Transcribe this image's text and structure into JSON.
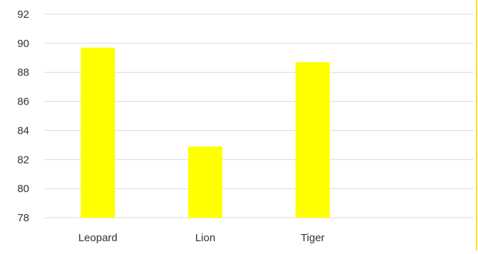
{
  "chart_data": {
    "type": "bar",
    "categories": [
      "Leopard",
      "Lion",
      "Tiger",
      ""
    ],
    "values": [
      89.7,
      82.9,
      88.7,
      null
    ],
    "ylim": [
      78,
      92
    ],
    "yticks": [
      78,
      80,
      82,
      84,
      86,
      88,
      90,
      92
    ],
    "grid": true,
    "legend": "none",
    "title": "",
    "xlabel": "",
    "ylabel": ""
  },
  "colors": {
    "bar": "#FFFF00",
    "grid": "#D9D9D9",
    "border": "#FFE200"
  }
}
